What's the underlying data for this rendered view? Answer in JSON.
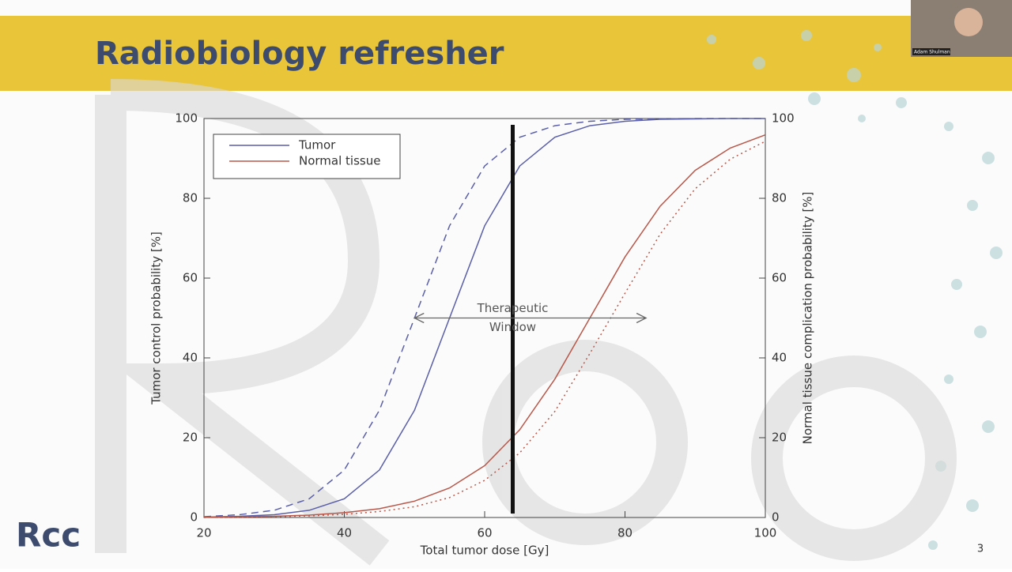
{
  "slide": {
    "title": "Radiobiology refresher",
    "page_number": 3,
    "logo": "Rcc"
  },
  "webcam": {
    "name": "Adam Shulman"
  },
  "chart_data": {
    "type": "line",
    "x_label": "Total tumor dose [Gy]",
    "y_label": "Tumor control probability [%]",
    "y2_label": "Normal tissue complication probability [%]",
    "annotation": [
      "Therapeutic",
      "Window"
    ],
    "window_x": [
      50,
      83
    ],
    "dose_line_x": 64,
    "x": [
      20,
      25,
      30,
      35,
      40,
      45,
      50,
      55,
      60,
      65,
      70,
      75,
      80,
      85,
      90,
      95,
      100
    ],
    "xlim": [
      20,
      100
    ],
    "xticks": [
      20,
      40,
      60,
      80,
      100
    ],
    "ylim": [
      0,
      100
    ],
    "yticks": [
      0,
      20,
      40,
      60,
      80,
      100
    ],
    "y2lim": [
      0,
      100
    ],
    "y2ticks": [
      0,
      20,
      40,
      60,
      80,
      100
    ],
    "legend": "upper left",
    "series": [
      {
        "name": "Tumor",
        "color": "#5a5fa8",
        "style": "solid",
        "values": [
          0.1,
          0.3,
          0.7,
          1.8,
          4.7,
          11.9,
          26.9,
          50,
          73.1,
          88.1,
          95.3,
          98.2,
          99.3,
          99.8,
          99.9,
          100,
          100
        ]
      },
      {
        "color": "#5a5fa8",
        "style": "dashed",
        "values": [
          0.2,
          0.7,
          1.8,
          4.7,
          11.9,
          26.9,
          50,
          73.1,
          88.1,
          95.3,
          98.2,
          99.3,
          99.8,
          99.9,
          100,
          100,
          100
        ]
      },
      {
        "name": "Normal tissue",
        "color": "#b8584a",
        "style": "solid",
        "axis": "y2",
        "values": [
          0.1,
          0.2,
          0.3,
          0.6,
          1.2,
          2.2,
          4.1,
          7.4,
          13,
          22,
          34.7,
          50,
          65.3,
          78,
          87,
          92.6,
          95.9
        ]
      },
      {
        "color": "#b8584a",
        "style": "dotted",
        "axis": "y2",
        "values": [
          0,
          0.1,
          0.2,
          0.4,
          0.8,
          1.5,
          2.7,
          5,
          9.3,
          16.2,
          26.6,
          41.1,
          56.2,
          71,
          82.4,
          89.8,
          94.3
        ]
      }
    ]
  }
}
